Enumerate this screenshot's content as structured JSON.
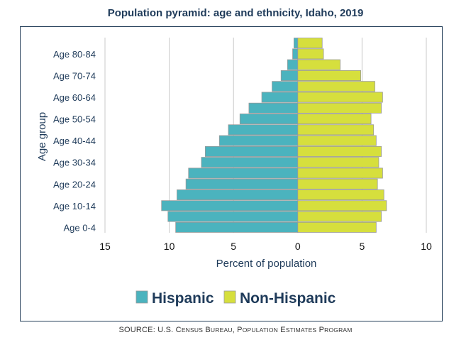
{
  "chart_data": {
    "type": "bar",
    "orientation": "horizontal-pyramid",
    "title": "Population pyramid: age and ethnicity, Idaho, 2019",
    "xlabel": "Percent of population",
    "ylabel": "Age group",
    "xlim": [
      -15,
      10
    ],
    "xticks": [
      -15,
      -10,
      -5,
      0,
      5,
      10
    ],
    "xtick_labels": [
      "15",
      "10",
      "5",
      "0",
      "5",
      "10"
    ],
    "categories": [
      "Age 0-4",
      "Age 5-9",
      "Age 10-14",
      "Age 15-19",
      "Age 20-24",
      "Age 25-29",
      "Age 30-34",
      "Age 35-39",
      "Age 40-44",
      "Age 45-49",
      "Age 50-54",
      "Age 55-59",
      "Age 60-64",
      "Age 65-69",
      "Age 70-74",
      "Age 75-79",
      "Age 80-84",
      "Age 85+"
    ],
    "ytick_labels": [
      "Age 0-4",
      "Age 10-14",
      "Age 20-24",
      "Age 30-34",
      "Age 40-44",
      "Age 50-54",
      "Age 60-64",
      "Age 70-74",
      "Age 80-84"
    ],
    "grid": true,
    "legend_position": "bottom",
    "series": [
      {
        "name": "Hispanic",
        "side": "left",
        "color": "#4bb3be",
        "values": [
          9.5,
          10.1,
          10.6,
          9.4,
          8.7,
          8.5,
          7.5,
          7.2,
          6.1,
          5.4,
          4.5,
          3.8,
          2.8,
          2.0,
          1.3,
          0.8,
          0.4,
          0.3
        ]
      },
      {
        "name": "Non-Hispanic",
        "side": "right",
        "color": "#d6df3d",
        "values": [
          6.1,
          6.5,
          6.9,
          6.7,
          6.2,
          6.6,
          6.3,
          6.5,
          6.1,
          5.9,
          5.7,
          6.5,
          6.6,
          6.0,
          4.9,
          3.3,
          2.0,
          1.9
        ]
      }
    ],
    "source": {
      "prefix": "SOURCE: U.S. C",
      "parts": [
        {
          "text": "ensus",
          "small": true
        },
        {
          "text": " B",
          "small": false
        },
        {
          "text": "ureau",
          "small": true
        },
        {
          "text": ", P",
          "small": false
        },
        {
          "text": "opulation",
          "small": true
        },
        {
          "text": " E",
          "small": false
        },
        {
          "text": "stimates",
          "small": true
        },
        {
          "text": " P",
          "small": false
        },
        {
          "text": "rogram",
          "small": true
        }
      ]
    }
  },
  "colors": {
    "grid": "#c9c9c9",
    "bar_edge": "#9a9a9a",
    "text": "#1f3b5a",
    "frame": "#243f5a"
  }
}
